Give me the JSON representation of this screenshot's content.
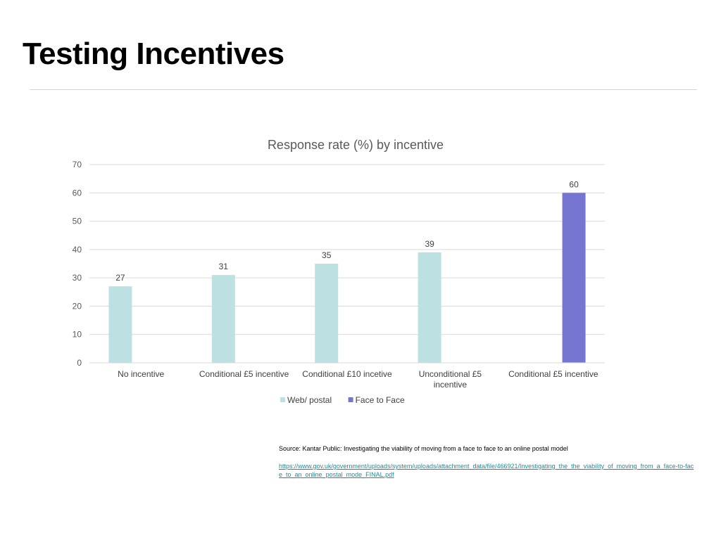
{
  "slide": {
    "title": "Testing Incentives"
  },
  "chart_data": {
    "type": "bar",
    "title": "Response rate (%) by incentive",
    "xlabel": "",
    "ylabel": "",
    "ylim": [
      0,
      70
    ],
    "yticks": [
      0,
      10,
      20,
      30,
      40,
      50,
      60,
      70
    ],
    "grid": true,
    "legend_position": "bottom",
    "categories": [
      [
        "No incentive"
      ],
      [
        "Conditional £5 incentive"
      ],
      [
        "Conditional £10 incetive"
      ],
      [
        "Unconditional £5",
        "incentive"
      ],
      [
        "Conditional £5 incentive"
      ]
    ],
    "series": [
      {
        "name": "Web/ postal",
        "color": "#bde0e2",
        "values": [
          27,
          31,
          35,
          39,
          null
        ]
      },
      {
        "name": "Face to Face",
        "color": "#7775d2",
        "values": [
          null,
          null,
          null,
          null,
          60
        ]
      }
    ]
  },
  "source": {
    "text": "Source:  Kantar Public: Investigating the viability of moving from a face to face to an online postal model",
    "link": "https://www.gov.uk/government/uploads/system/uploads/attachment_data/file/466921/Investigating_the_the_viability_of_moving_from_a_face-to-face_to_an_online_postal_mode_FINAL.pdf"
  }
}
